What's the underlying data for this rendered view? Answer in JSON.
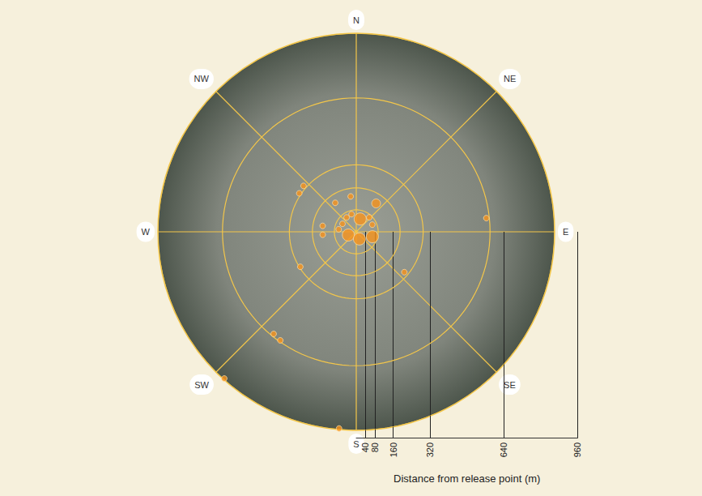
{
  "chart_data": {
    "type": "polar_scatter",
    "color": "#f7941d",
    "bearing": [
      311,
      304,
      351,
      324,
      35,
      280,
      265,
      278,
      326,
      345,
      17,
      42,
      248,
      156,
      107,
      66,
      84,
      130,
      238,
      219,
      215,
      222,
      185,
      300
    ],
    "distance": [
      303,
      298,
      155,
      155,
      150,
      148,
      146,
      77,
      75,
      79,
      58,
      84,
      37,
      34,
      73,
      76,
      567,
      272,
      286,
      569,
      574,
      855,
      855,
      69
    ],
    "size": [
      1,
      1,
      1,
      1,
      2,
      1,
      1,
      1,
      1,
      1,
      3,
      1,
      3,
      3,
      3,
      1,
      1,
      1,
      1,
      1,
      1,
      1,
      1,
      1
    ],
    "bearing_lim": [
      0,
      360
    ],
    "bearing_ticks": [
      {
        "value": 0,
        "label": "N"
      },
      {
        "value": 45,
        "label": "NE"
      },
      {
        "value": 90,
        "label": "E"
      },
      {
        "value": 135,
        "label": "SE"
      },
      {
        "value": 180,
        "label": "S"
      },
      {
        "value": 225,
        "label": "SW"
      },
      {
        "value": 270,
        "label": "W"
      },
      {
        "value": 315,
        "label": "NW"
      }
    ],
    "distance_lim": [
      0,
      860
    ],
    "distance_rings": [
      95,
      190,
      290,
      580,
      860
    ],
    "xlabel": "Distance from release point (m)",
    "xlim": [
      0,
      960
    ],
    "xticks": [
      40,
      80,
      160,
      320,
      640,
      960
    ]
  }
}
